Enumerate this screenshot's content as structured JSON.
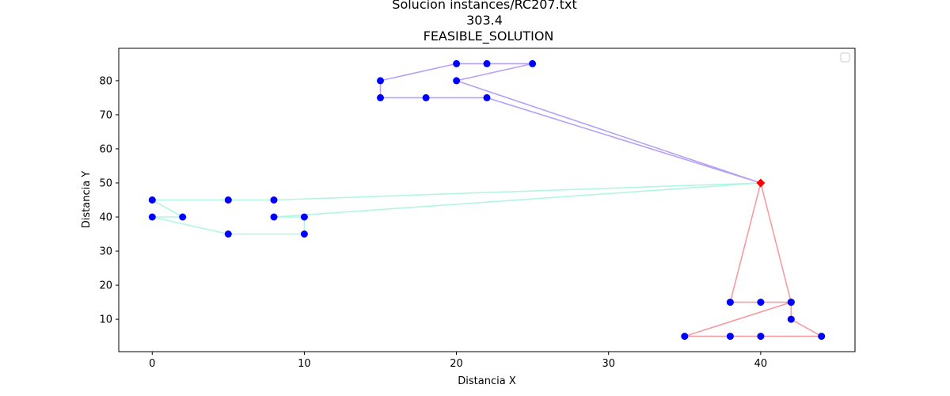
{
  "chart_data": {
    "type": "scatter",
    "title_lines": [
      "Solucion instances/RC207.txt",
      "303.4",
      "FEASIBLE_SOLUTION"
    ],
    "xlabel": "Distancia X",
    "ylabel": "Distancia Y",
    "xlim": [
      -2.2,
      46.2
    ],
    "ylim": [
      0.5,
      89.5
    ],
    "xticks": [
      0,
      10,
      20,
      30,
      40
    ],
    "yticks": [
      10,
      20,
      30,
      40,
      50,
      60,
      70,
      80
    ],
    "grid": false,
    "legend": {
      "present": true,
      "location": "top-right",
      "entries": []
    },
    "depot": {
      "x": 40,
      "y": 50,
      "color": "#ff0000",
      "marker": "diamond"
    },
    "customer_color": "#0000ff",
    "routes": [
      {
        "color": "#b7a2f2",
        "points": [
          [
            40,
            50
          ],
          [
            22,
            75
          ],
          [
            18,
            75
          ],
          [
            15,
            75
          ],
          [
            15,
            80
          ],
          [
            20,
            85
          ],
          [
            22,
            85
          ],
          [
            25,
            85
          ],
          [
            20,
            80
          ],
          [
            40,
            50
          ]
        ]
      },
      {
        "color": "#b3f5e3",
        "points": [
          [
            40,
            50
          ],
          [
            8,
            45
          ],
          [
            5,
            45
          ],
          [
            0,
            45
          ],
          [
            2,
            40
          ],
          [
            0,
            40
          ],
          [
            5,
            35
          ],
          [
            10,
            35
          ],
          [
            10,
            40
          ],
          [
            8,
            40
          ],
          [
            40,
            50
          ]
        ]
      },
      {
        "color": "#f59ca0",
        "points": [
          [
            40,
            50
          ],
          [
            38,
            15
          ],
          [
            40,
            15
          ],
          [
            42,
            15
          ],
          [
            35,
            5
          ],
          [
            38,
            5
          ],
          [
            40,
            5
          ],
          [
            44,
            5
          ],
          [
            42,
            10
          ],
          [
            42,
            15
          ],
          [
            40,
            50
          ]
        ]
      }
    ]
  }
}
